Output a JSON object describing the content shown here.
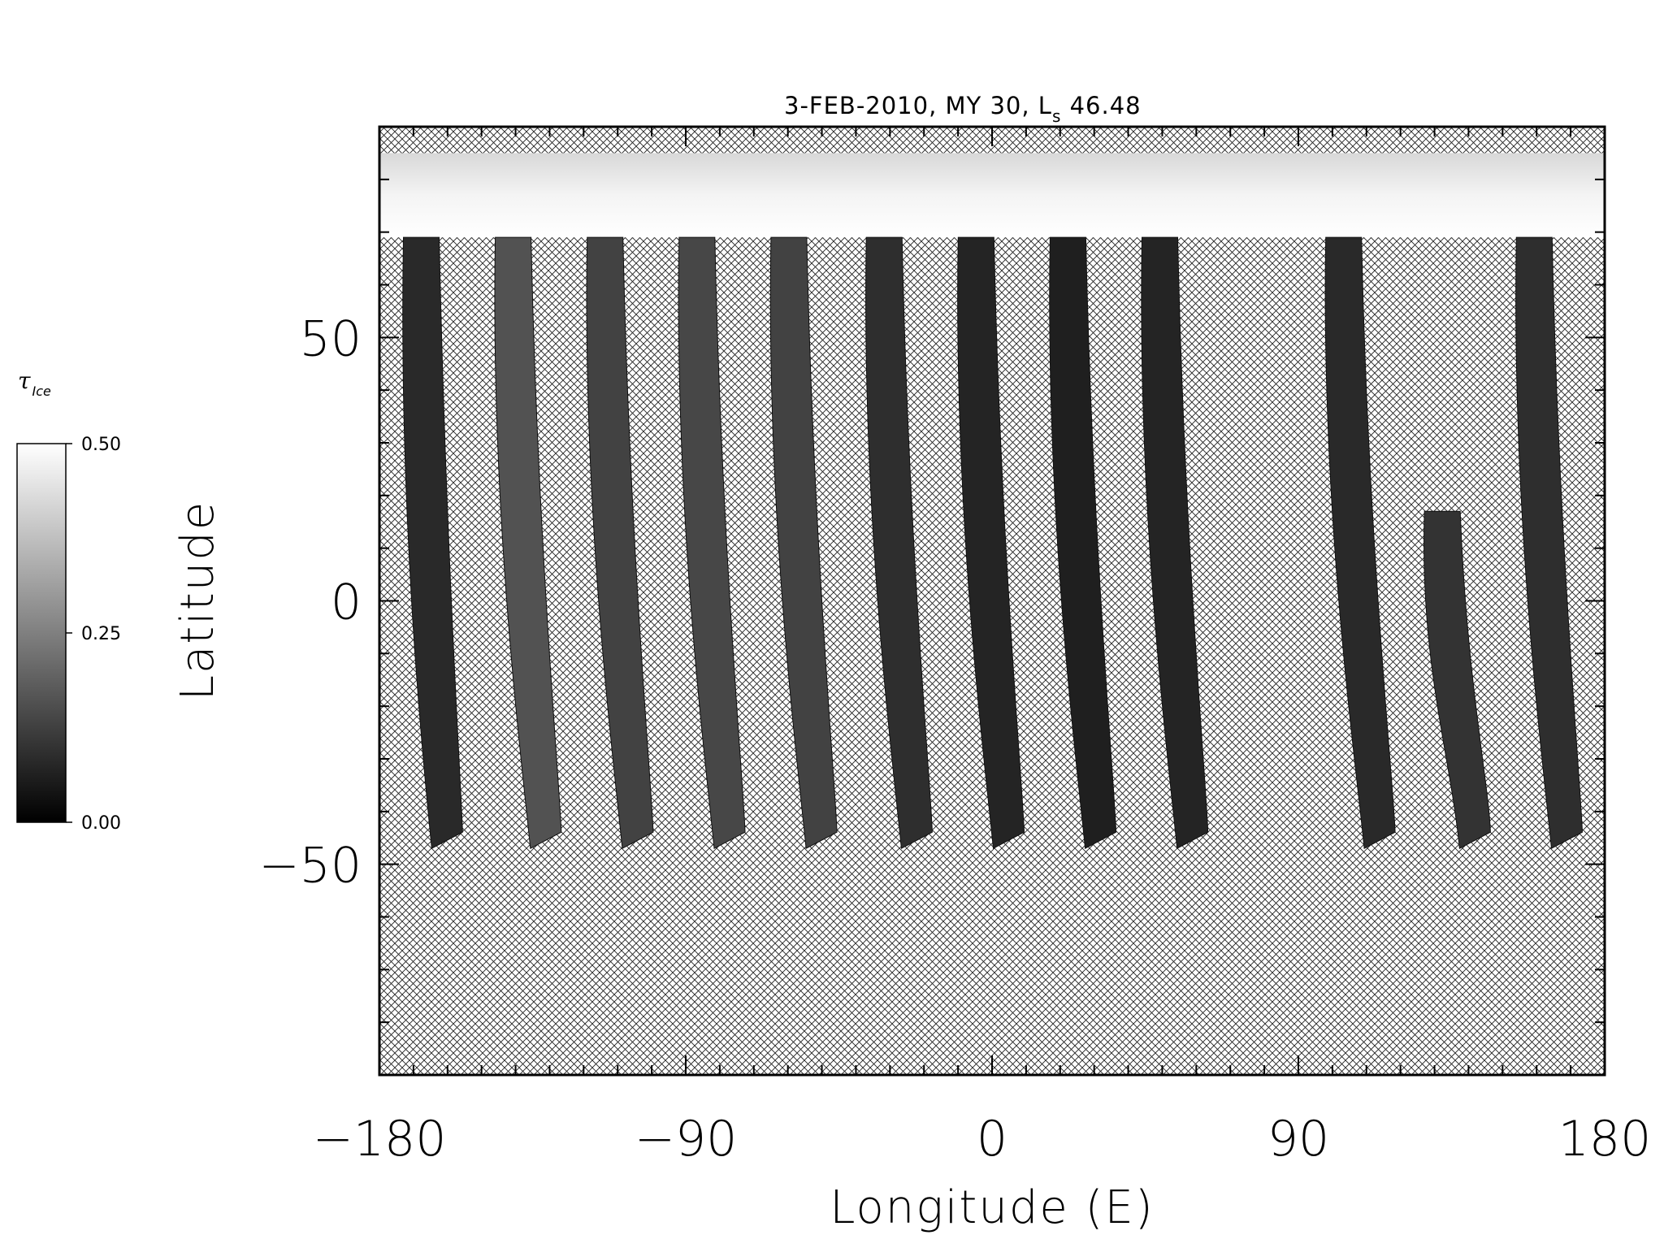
{
  "chart_data": {
    "type": "heatmap",
    "title": "3-FEB-2010, MY 30,  L",
    "title_ls_sub": "s",
    "title_ls_value": " 46.48",
    "xlabel": "Longitude (E)",
    "ylabel": "Latitude",
    "xlim": [
      -180,
      180
    ],
    "ylim": [
      -90,
      90
    ],
    "x_ticks": [
      {
        "value": -180,
        "label": "−180"
      },
      {
        "value": -90,
        "label": "−90"
      },
      {
        "value": 0,
        "label": "0"
      },
      {
        "value": 90,
        "label": "90"
      },
      {
        "value": 180,
        "label": "180"
      }
    ],
    "y_ticks": [
      {
        "value": 50,
        "label": "50"
      },
      {
        "value": 0,
        "label": "0"
      },
      {
        "value": -50,
        "label": "−50"
      }
    ],
    "x_minor_step": 10,
    "y_minor_step": 10,
    "polar_band": {
      "lat_min": 69,
      "lat_max": 85
    },
    "swaths": [
      {
        "lon_top": -172,
        "lon_bottom": -157,
        "lat_top": 69,
        "lat_bottom": -47,
        "mean_tau": 0.08
      },
      {
        "lon_top": -145,
        "lon_bottom": -128,
        "lat_top": 69,
        "lat_bottom": -47,
        "mean_tau": 0.16
      },
      {
        "lon_top": -118,
        "lon_bottom": -101,
        "lat_top": 69,
        "lat_bottom": -47,
        "mean_tau": 0.13
      },
      {
        "lon_top": -91,
        "lon_bottom": -74,
        "lat_top": 69,
        "lat_bottom": -47,
        "mean_tau": 0.14
      },
      {
        "lon_top": -64,
        "lon_bottom": -47,
        "lat_top": 69,
        "lat_bottom": -47,
        "mean_tau": 0.13
      },
      {
        "lon_top": -36,
        "lon_bottom": -19,
        "lat_top": 69,
        "lat_bottom": -47,
        "mean_tau": 0.09
      },
      {
        "lon_top": -9,
        "lon_bottom": 8,
        "lat_top": 69,
        "lat_bottom": -47,
        "mean_tau": 0.07
      },
      {
        "lon_top": 18,
        "lon_bottom": 35,
        "lat_top": 69,
        "lat_bottom": -47,
        "mean_tau": 0.06
      },
      {
        "lon_top": 45,
        "lon_bottom": 62,
        "lat_top": 69,
        "lat_bottom": -47,
        "mean_tau": 0.07
      },
      {
        "lon_top": 99,
        "lon_bottom": 117,
        "lat_top": 69,
        "lat_bottom": -47,
        "mean_tau": 0.08
      },
      {
        "lon_top": 128,
        "lon_bottom": 145,
        "lat_top": 17,
        "lat_bottom": -47,
        "mean_tau": 0.1
      },
      {
        "lon_top": 155,
        "lon_bottom": 172,
        "lat_top": 69,
        "lat_bottom": -47,
        "mean_tau": 0.09
      }
    ],
    "colorbar": {
      "label": "τ",
      "label_sub": "Ice",
      "min": 0.0,
      "max": 0.5,
      "ticks": [
        {
          "value": 0.5,
          "label": "0.50"
        },
        {
          "value": 0.25,
          "label": "0.25"
        },
        {
          "value": 0.0,
          "label": "0.00"
        }
      ],
      "colormap": "grayscale"
    },
    "missing_data_pattern": "crosshatch",
    "grid": false
  }
}
